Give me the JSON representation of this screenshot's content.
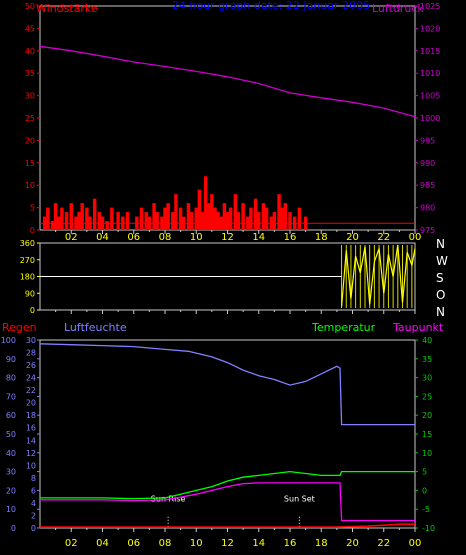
{
  "colors": {
    "background": "#000000",
    "frame": "#c8c8c8",
    "wind_label": "#ff0000",
    "title": "#0000ff",
    "pressure": "#cc00cc",
    "direction_tick": "#ffff00",
    "rain": "#ff0000",
    "humidity": "#8080ff",
    "temperature": "#00ff00",
    "dewpoint": "#ff00ff",
    "axis_green": "#00cc00",
    "compass": "#ffffff",
    "sun": "#ffffff",
    "ticks": "#ffff00"
  },
  "header": {
    "wind_title": "Windstärke",
    "graph_title": "24 hour graph date: 22 Januar 2005",
    "pressure_title": "Luftdruck"
  },
  "compass": [
    "N",
    "W",
    "S",
    "O",
    "N"
  ],
  "bottom_header": {
    "rain_title": "Regen",
    "humidity_title": "Luftfeuchte",
    "temperature_title": "Temperatur",
    "dewpoint_title": "Taupunkt"
  },
  "chart_data": [
    {
      "type": "bar",
      "title": "24 hour graph date: 22 Januar 2005",
      "ylabel": "Windstärke",
      "ylabel_right": "Luftdruck",
      "ylim": [
        0,
        50
      ],
      "ylim_right": [
        975,
        1025
      ],
      "yticks": [
        0,
        5,
        10,
        15,
        20,
        25,
        30,
        35,
        40,
        45,
        50
      ],
      "yticks_right": [
        975,
        980,
        985,
        990,
        995,
        1000,
        1005,
        1010,
        1015,
        1020,
        1025
      ],
      "xticks": [
        "02",
        "04",
        "06",
        "08",
        "10",
        "12",
        "14",
        "16",
        "18",
        "20",
        "22",
        "00"
      ],
      "series": [
        {
          "name": "Windstärke",
          "type": "bar",
          "x": [
            0.3,
            0.5,
            0.8,
            1.0,
            1.2,
            1.4,
            1.7,
            2.0,
            2.3,
            2.5,
            2.7,
            3.0,
            3.2,
            3.5,
            3.8,
            4.0,
            4.3,
            4.6,
            5.0,
            5.3,
            5.6,
            6.2,
            6.5,
            6.8,
            7.0,
            7.3,
            7.5,
            7.8,
            8.0,
            8.2,
            8.5,
            8.7,
            9.0,
            9.2,
            9.5,
            9.7,
            10.0,
            10.2,
            10.4,
            10.6,
            10.8,
            11.0,
            11.2,
            11.4,
            11.6,
            11.8,
            12.0,
            12.2,
            12.5,
            12.7,
            13.0,
            13.3,
            13.5,
            13.8,
            14.0,
            14.3,
            14.5,
            14.8,
            15.0,
            15.3,
            15.5,
            15.7,
            16.0,
            16.3,
            16.6,
            17.0
          ],
          "values": [
            3,
            5,
            2,
            6,
            3,
            5,
            4,
            6,
            3,
            4,
            6,
            5,
            3,
            7,
            4,
            3,
            2,
            5,
            4,
            3,
            4,
            3,
            5,
            4,
            3,
            6,
            4,
            3,
            5,
            6,
            4,
            8,
            5,
            3,
            6,
            4,
            5,
            9,
            4,
            12,
            6,
            8,
            5,
            4,
            3,
            6,
            4,
            5,
            8,
            4,
            6,
            3,
            5,
            7,
            4,
            6,
            5,
            3,
            4,
            8,
            5,
            6,
            4,
            3,
            5,
            3
          ]
        },
        {
          "name": "Luftdruck",
          "type": "line",
          "axis": "right",
          "x": [
            0,
            2,
            4,
            6,
            8,
            10,
            12,
            14,
            16,
            18,
            20,
            22,
            24
          ],
          "values": [
            1016,
            1015,
            1013.8,
            1012.5,
            1011.5,
            1010.4,
            1009.2,
            1007.7,
            1005.6,
            1004.5,
            1003.5,
            1002.2,
            1000.3
          ]
        }
      ]
    },
    {
      "type": "scatter",
      "ylim": [
        0,
        360
      ],
      "yticks": [
        0,
        90,
        180,
        270,
        360
      ],
      "xticks": [
        "02",
        "04",
        "06",
        "08",
        "10",
        "12",
        "14",
        "16",
        "18",
        "20",
        "22",
        "00"
      ],
      "series": [
        {
          "name": "direction",
          "x": [
            0,
            19.3
          ],
          "values": [
            180,
            180
          ]
        },
        {
          "name": "direction_noisy",
          "x": [
            19.3,
            19.6,
            19.9,
            20.2,
            20.5,
            20.8,
            21.1,
            21.4,
            21.7,
            22.0,
            22.3,
            22.6,
            22.9,
            23.2,
            23.5,
            23.8,
            24.0
          ],
          "values": [
            20,
            320,
            60,
            290,
            200,
            340,
            30,
            260,
            330,
            90,
            300,
            180,
            350,
            40,
            310,
            240,
            330
          ]
        }
      ]
    },
    {
      "type": "line",
      "ylabel": "Regen",
      "ylabel_2": "Luftfeuchte",
      "ylabel_right": "Temperatur",
      "ylabel_right_2": "Taupunkt",
      "ylim": [
        0,
        100
      ],
      "ylim_2": [
        0,
        30
      ],
      "ylim_right": [
        -10,
        40
      ],
      "yticks": [
        0,
        10,
        20,
        30,
        40,
        50,
        60,
        70,
        80,
        90,
        100
      ],
      "yticks_2": [
        0,
        2,
        4,
        6,
        8,
        10,
        12,
        14,
        16,
        18,
        20,
        22,
        24,
        26,
        28,
        30
      ],
      "yticks_right": [
        -10,
        -5,
        0,
        5,
        10,
        15,
        20,
        25,
        30,
        35,
        40
      ],
      "xticks": [
        "02",
        "04",
        "06",
        "08",
        "10",
        "12",
        "14",
        "16",
        "18",
        "20",
        "22",
        "00"
      ],
      "annotations": [
        {
          "text": "Sun Rise",
          "x": 8.2
        },
        {
          "text": "Sun Set",
          "x": 16.6
        }
      ],
      "series": [
        {
          "name": "Luftfeuchte",
          "axis": "left",
          "x": [
            0,
            2,
            4,
            6,
            8,
            9.5,
            11,
            12,
            13,
            14,
            15,
            16,
            17,
            18,
            19,
            19.2,
            19.3,
            24
          ],
          "values": [
            98,
            97.5,
            97,
            96.5,
            95,
            94,
            91,
            88,
            84,
            81,
            79,
            76,
            78,
            82,
            86,
            85,
            55,
            55
          ]
        },
        {
          "name": "Temperatur",
          "axis": "right",
          "x": [
            0,
            2,
            4,
            6,
            8,
            9,
            10,
            11,
            12,
            13,
            14,
            15,
            16,
            17,
            18,
            19,
            19.2,
            19.3,
            24
          ],
          "values": [
            -2,
            -2,
            -2,
            -2.2,
            -2,
            -1,
            0,
            1,
            2.5,
            3.5,
            4,
            4.5,
            5,
            4.5,
            4,
            4,
            4,
            5,
            5
          ]
        },
        {
          "name": "Taupunkt",
          "axis": "right",
          "x": [
            0,
            2,
            4,
            6,
            8,
            9,
            10,
            11,
            12,
            13,
            14,
            15,
            16,
            17,
            18,
            19,
            19.2,
            19.3,
            24
          ],
          "values": [
            -2.5,
            -2.5,
            -2.5,
            -2.7,
            -2.5,
            -1.8,
            -1,
            0,
            1,
            1.8,
            2,
            2,
            2,
            2,
            2,
            2,
            2,
            -8,
            -8
          ]
        },
        {
          "name": "Regen",
          "axis": "left",
          "x": [
            0,
            4,
            8,
            12,
            16,
            19,
            21,
            22,
            23,
            24
          ],
          "values": [
            0.5,
            0.5,
            0.5,
            0.5,
            0.5,
            0.5,
            1,
            1.5,
            2,
            2
          ]
        }
      ]
    }
  ]
}
